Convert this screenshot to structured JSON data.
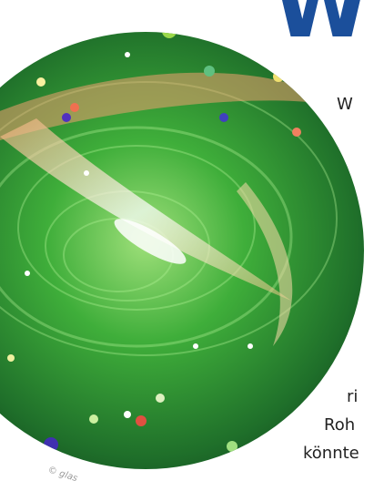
{
  "heading": "Wi",
  "text_lines": [
    "W",
    "ri",
    "Roh",
    "könnte"
  ],
  "image_credit": "© glas"
}
